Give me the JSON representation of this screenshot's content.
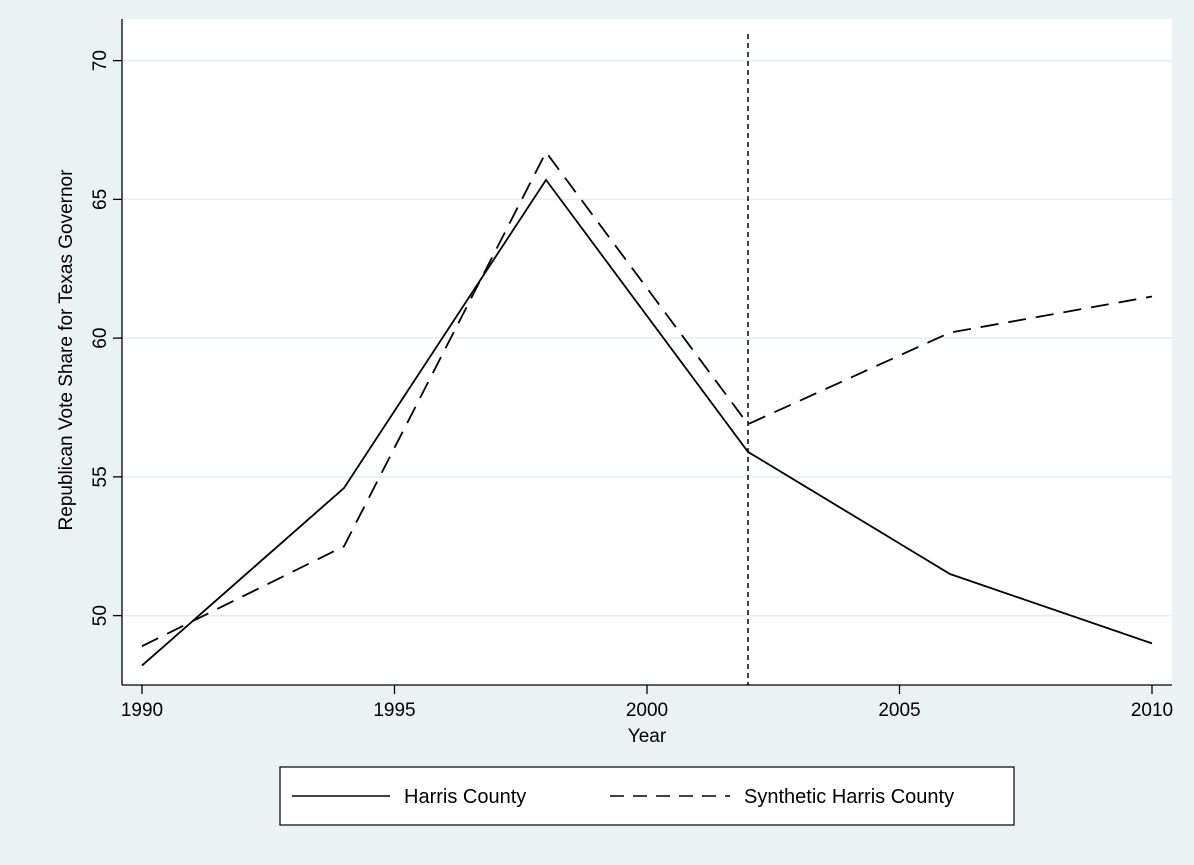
{
  "chart_data": {
    "type": "line",
    "title": "",
    "xlabel": "Year",
    "ylabel": "Republican Vote Share for Texas Governor",
    "xlim": [
      1990,
      2010
    ],
    "ylim": [
      47.5,
      71.5
    ],
    "x_ticks": [
      1990,
      1995,
      2000,
      2005,
      2010
    ],
    "y_ticks": [
      50,
      55,
      60,
      65,
      70
    ],
    "grid": true,
    "legend_position": "bottom",
    "colors": {
      "background": "#eaf2f3",
      "plot_bg": "#ffffff",
      "line": "#000000",
      "grid": "#e6eeee"
    },
    "reference_line": {
      "x": 2002,
      "style": "dashed"
    },
    "series": [
      {
        "name": "Harris County",
        "style": "solid",
        "x": [
          1990,
          1994,
          1998,
          2002,
          2006,
          2010
        ],
        "values": [
          48.2,
          54.6,
          65.7,
          55.9,
          51.5,
          49.0
        ]
      },
      {
        "name": "Synthetic Harris County",
        "style": "dashed",
        "x": [
          1990,
          1994,
          1998,
          2002,
          2006,
          2010
        ],
        "values": [
          48.9,
          52.5,
          66.7,
          56.9,
          60.2,
          61.5
        ]
      }
    ]
  }
}
